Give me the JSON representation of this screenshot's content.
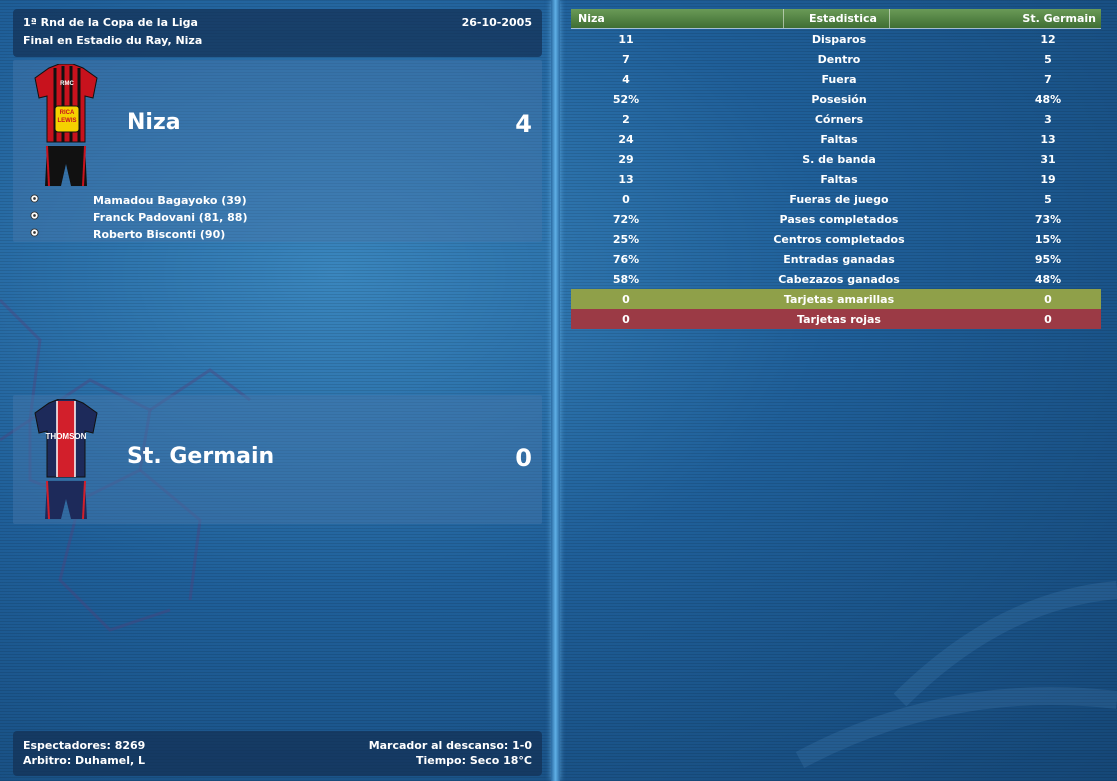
{
  "match": {
    "competition": "1ª Rnd de la Copa de la Liga",
    "date": "26-10-2005",
    "venue": "Final en Estadio du Ray, Niza"
  },
  "home": {
    "name": "Niza",
    "score": "4",
    "kit_sponsor_top": "RMC",
    "kit_sponsor": "RICA LEWIS",
    "scorers": [
      "Mamadou Bagayoko (39)",
      "Franck Padovani (81, 88)",
      "Roberto Bisconti (90)"
    ]
  },
  "away": {
    "name": "St. Germain",
    "score": "0",
    "kit_sponsor": "THOMSON"
  },
  "footer": {
    "attendance": "Espectadores: 8269",
    "referee": "Arbitro: Duhamel, L",
    "halftime": "Marcador al descanso: 1-0",
    "weather": "Tiempo: Seco 18°C"
  },
  "stats": {
    "header": {
      "home": "Niza",
      "label": "Estadistica",
      "away": "St. Germain"
    },
    "rows": [
      {
        "home": "11",
        "label": "Disparos",
        "away": "12"
      },
      {
        "home": "7",
        "label": "Dentro",
        "away": "5"
      },
      {
        "home": "4",
        "label": "Fuera",
        "away": "7"
      },
      {
        "home": "52%",
        "label": "Posesión",
        "away": "48%"
      },
      {
        "home": "2",
        "label": "Córners",
        "away": "3"
      },
      {
        "home": "24",
        "label": "Faltas",
        "away": "13"
      },
      {
        "home": "29",
        "label": "S. de banda",
        "away": "31"
      },
      {
        "home": "13",
        "label": "Faltas",
        "away": "19"
      },
      {
        "home": "0",
        "label": "Fueras de juego",
        "away": "5"
      },
      {
        "home": "72%",
        "label": "Pases completados",
        "away": "73%"
      },
      {
        "home": "25%",
        "label": "Centros completados",
        "away": "15%"
      },
      {
        "home": "76%",
        "label": "Entradas ganadas",
        "away": "95%"
      },
      {
        "home": "58%",
        "label": "Cabezazos ganados",
        "away": "48%"
      },
      {
        "home": "0",
        "label": "Tarjetas amarillas",
        "away": "0"
      },
      {
        "home": "0",
        "label": "Tarjetas rojas",
        "away": "0"
      }
    ]
  },
  "colors": {
    "yellow_card_row": "#8fa049",
    "red_card_row": "#9b3a45",
    "header_green": "#4f7f42"
  }
}
